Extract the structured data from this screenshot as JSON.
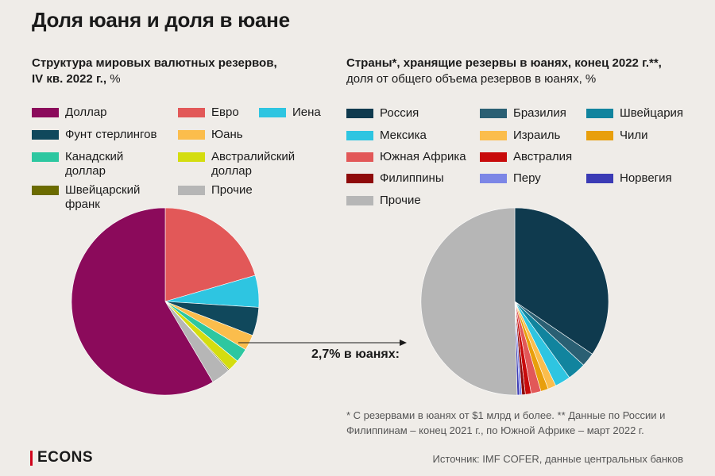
{
  "title": "Доля юаня и доля в юане",
  "left_chart": {
    "subtitle_bold": "Структура мировых валютных резервов,",
    "subtitle_bold2": "IV кв. 2022 г.,",
    "subtitle_unit": " %",
    "legend": [
      {
        "label": "Доллар",
        "color": "#8b0a5b"
      },
      {
        "label": "Евро",
        "color": "#e25858"
      },
      {
        "label": "Иена",
        "color": "#2ec5e1"
      },
      {
        "label": "Фунт стерлингов",
        "color": "#10485c"
      },
      {
        "label": "Юань",
        "color": "#fbbd4c"
      },
      {
        "label": "Канадский доллар",
        "color": "#2dc7a0"
      },
      {
        "label": "Австралийский доллар",
        "color": "#d4dd0f"
      },
      {
        "label": "Швейцарский франк",
        "color": "#6b6b00"
      },
      {
        "label": "Прочие",
        "color": "#b6b6b6"
      }
    ]
  },
  "right_chart": {
    "subtitle_bold": "Страны*, хранящие резервы в юанях, конец 2022 г.**,",
    "subtitle_normal": "доля от общего объема резервов в юанях, %",
    "legend": [
      {
        "label": "Россия",
        "color": "#0f3a4e"
      },
      {
        "label": "Бразилия",
        "color": "#2a5f73"
      },
      {
        "label": "Швейцария",
        "color": "#11849e"
      },
      {
        "label": "Мексика",
        "color": "#2ec5e1"
      },
      {
        "label": "Израиль",
        "color": "#fbbd4c"
      },
      {
        "label": "Чили",
        "color": "#e89f0c"
      },
      {
        "label": "Южная Африка",
        "color": "#e25858"
      },
      {
        "label": "Австралия",
        "color": "#c80b0b"
      },
      {
        "label": "Филиппины",
        "color": "#8e0a0a"
      },
      {
        "label": "Перу",
        "color": "#7c86e6"
      },
      {
        "label": "Норвегия",
        "color": "#3b3bb5"
      },
      {
        "label": "Прочие",
        "color": "#b6b6b6"
      }
    ]
  },
  "chart_data": [
    {
      "type": "pie",
      "title": "Структура мировых валютных резервов, IV кв. 2022 г., %",
      "categories": [
        "Евро",
        "Иена",
        "Фунт стерлингов",
        "Юань",
        "Канадский доллар",
        "Австралийский доллар",
        "Швейцарский франк",
        "Прочие",
        "Доллар"
      ],
      "values": [
        20.5,
        5.5,
        4.9,
        2.7,
        2.4,
        2.0,
        0.2,
        3.3,
        58.5
      ],
      "colors": [
        "#e25858",
        "#2ec5e1",
        "#10485c",
        "#fbbd4c",
        "#2dc7a0",
        "#d4dd0f",
        "#6b6b00",
        "#b6b6b6",
        "#8b0a5b"
      ]
    },
    {
      "type": "pie",
      "title": "Страны, хранящие резервы в юанях, конец 2022 г., доля от общего объема резервов в юанях, %",
      "categories": [
        "Россия",
        "Бразилия",
        "Швейцария",
        "Мексика",
        "Израиль",
        "Чили",
        "Южная Африка",
        "Австралия",
        "Филиппины",
        "Перу",
        "Норвегия",
        "Прочие"
      ],
      "values": [
        34.5,
        2.4,
        3.2,
        2.7,
        1.4,
        1.3,
        1.7,
        1.0,
        0.6,
        0.4,
        0.4,
        50.4
      ],
      "colors": [
        "#0f3a4e",
        "#2a5f73",
        "#11849e",
        "#2ec5e1",
        "#fbbd4c",
        "#e89f0c",
        "#e25858",
        "#c80b0b",
        "#8e0a0a",
        "#7c86e6",
        "#3b3bb5",
        "#b6b6b6"
      ]
    }
  ],
  "arrow_label": "2,7% в юанях:",
  "footnote": "* С резервами в юанях от $1 млрд и более. ** Данные по России и Филиппинам – конец 2021 г., по Южной Африке – март 2022 г.",
  "brand": "ECONS",
  "source": "Источник: IMF COFER, данные центральных банков"
}
